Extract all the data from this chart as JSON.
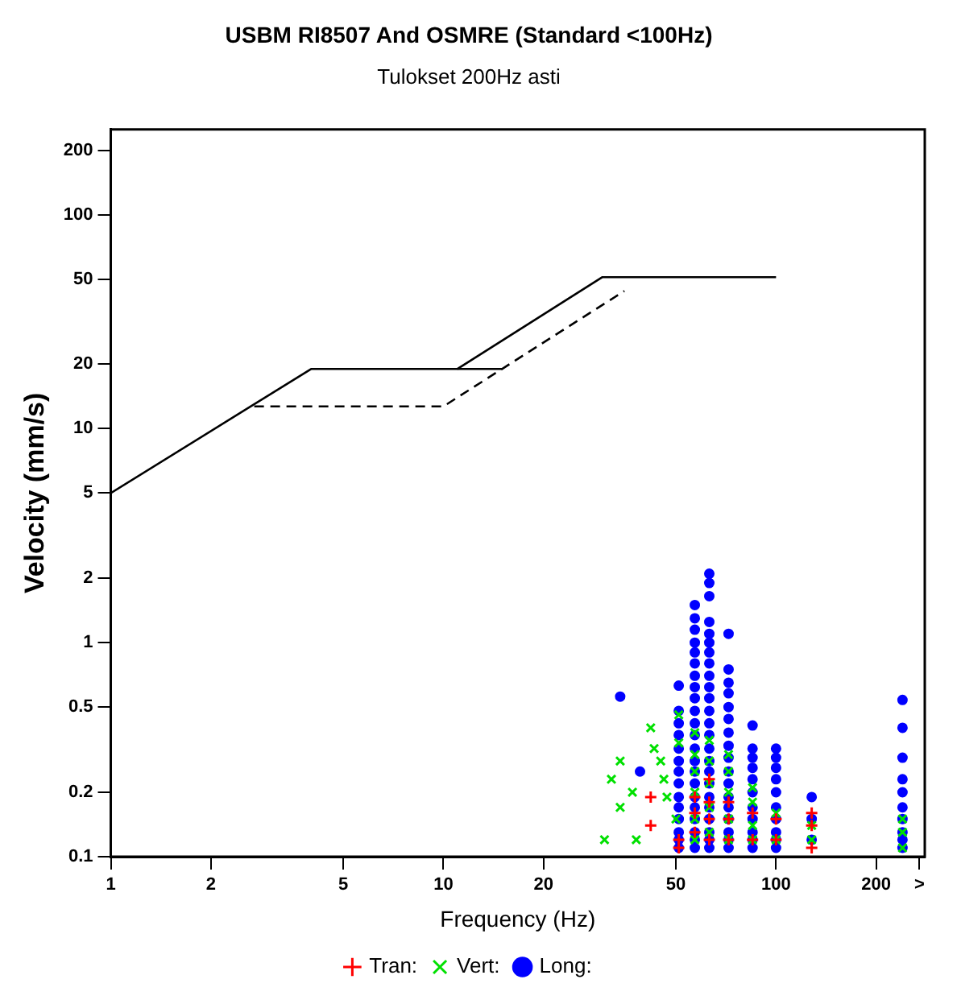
{
  "chart_data": {
    "type": "scatter",
    "title": "USBM RI8507 And OSMRE (Standard <100Hz)",
    "subtitle": "Tulokset 200Hz asti",
    "xlabel": "Frequency (Hz)",
    "ylabel": "Velocity (mm/s)",
    "log": "xy",
    "grid": false,
    "legend": "bottom",
    "xlim": [
      1,
      280
    ],
    "xticks": [
      1,
      2,
      5,
      10,
      20,
      50,
      100,
      200,
      {
        "value": 270,
        "label": ">"
      }
    ],
    "ylim": [
      0.1,
      250
    ],
    "yticks": [
      0.1,
      0.2,
      0.5,
      1,
      2,
      5,
      10,
      20,
      50,
      100,
      200
    ],
    "series": [
      {
        "type": "line",
        "color": "#000000",
        "line_style": "solid",
        "marker": "none",
        "x": [
          1,
          4,
          15
        ],
        "values": [
          5,
          19,
          19
        ]
      },
      {
        "type": "line",
        "color": "#000000",
        "line_style": "solid",
        "marker": "none",
        "x": [
          11,
          30,
          100
        ],
        "values": [
          19,
          51,
          51
        ]
      },
      {
        "type": "line",
        "color": "#000000",
        "line_style": "dashed",
        "marker": "none",
        "x": [
          2.7,
          10,
          15,
          35
        ],
        "values": [
          12.7,
          12.7,
          19,
          44
        ]
      },
      {
        "name": "Tran:",
        "color": "#ff0000",
        "marker": "cross",
        "x": [
          42,
          42,
          51,
          51,
          57,
          57,
          57,
          63,
          63,
          63,
          63,
          72,
          72,
          72,
          85,
          85,
          100,
          100,
          128,
          128,
          128
        ],
        "values": [
          0.19,
          0.14,
          0.12,
          0.11,
          0.19,
          0.16,
          0.13,
          0.23,
          0.18,
          0.15,
          0.12,
          0.18,
          0.15,
          0.12,
          0.16,
          0.12,
          0.15,
          0.12,
          0.16,
          0.14,
          0.11
        ]
      },
      {
        "name": "Vert:",
        "color": "#00e000",
        "marker": "x",
        "x": [
          30.5,
          32,
          34,
          34,
          37,
          38,
          42,
          43,
          45,
          46,
          47,
          50,
          51,
          51,
          57,
          57,
          57,
          57,
          57,
          57,
          63,
          63,
          63,
          63,
          63,
          72,
          72,
          72,
          72,
          72,
          85,
          85,
          85,
          85,
          100,
          100,
          128,
          128,
          240,
          240,
          240
        ],
        "values": [
          0.12,
          0.23,
          0.28,
          0.17,
          0.2,
          0.12,
          0.4,
          0.32,
          0.28,
          0.23,
          0.19,
          0.15,
          0.46,
          0.34,
          0.38,
          0.3,
          0.25,
          0.2,
          0.15,
          0.12,
          0.35,
          0.28,
          0.22,
          0.17,
          0.13,
          0.3,
          0.25,
          0.2,
          0.15,
          0.12,
          0.21,
          0.18,
          0.14,
          0.12,
          0.16,
          0.12,
          0.14,
          0.12,
          0.15,
          0.13,
          0.11
        ]
      },
      {
        "name": "Long:",
        "color": "#0000ff",
        "marker": "circle",
        "x": [
          34,
          39,
          51,
          51,
          51,
          51,
          51,
          51,
          51,
          51,
          51,
          51,
          51,
          51,
          51,
          51,
          57,
          57,
          57,
          57,
          57,
          57,
          57,
          57,
          57,
          57,
          57,
          57,
          57,
          57,
          57,
          57,
          57,
          57,
          57,
          57,
          57,
          57,
          63,
          63,
          63,
          63,
          63,
          63,
          63,
          63,
          63,
          63,
          63,
          63,
          63,
          63,
          63,
          63,
          63,
          63,
          63,
          63,
          63,
          63,
          63,
          63,
          72,
          72,
          72,
          72,
          72,
          72,
          72,
          72,
          72,
          72,
          72,
          72,
          72,
          72,
          72,
          72,
          72,
          85,
          85,
          85,
          85,
          85,
          85,
          85,
          85,
          85,
          85,
          85,
          100,
          100,
          100,
          100,
          100,
          100,
          100,
          100,
          100,
          100,
          128,
          128,
          128,
          240,
          240,
          240,
          240,
          240,
          240,
          240,
          240,
          240,
          240
        ],
        "values": [
          0.56,
          0.25,
          0.63,
          0.48,
          0.42,
          0.37,
          0.32,
          0.28,
          0.25,
          0.22,
          0.19,
          0.17,
          0.15,
          0.13,
          0.12,
          0.11,
          1.5,
          1.3,
          1.15,
          1,
          0.9,
          0.8,
          0.7,
          0.62,
          0.55,
          0.48,
          0.42,
          0.37,
          0.32,
          0.28,
          0.25,
          0.22,
          0.19,
          0.17,
          0.15,
          0.13,
          0.12,
          0.11,
          2.1,
          1.9,
          1.65,
          1.25,
          1.1,
          1,
          0.9,
          0.8,
          0.7,
          0.62,
          0.55,
          0.48,
          0.42,
          0.37,
          0.32,
          0.28,
          0.25,
          0.22,
          0.19,
          0.17,
          0.15,
          0.13,
          0.12,
          0.11,
          1.1,
          0.75,
          0.65,
          0.58,
          0.5,
          0.44,
          0.38,
          0.33,
          0.29,
          0.25,
          0.22,
          0.19,
          0.17,
          0.15,
          0.13,
          0.12,
          0.11,
          0.41,
          0.32,
          0.29,
          0.26,
          0.23,
          0.2,
          0.17,
          0.15,
          0.13,
          0.12,
          0.11,
          0.32,
          0.29,
          0.26,
          0.23,
          0.2,
          0.17,
          0.15,
          0.13,
          0.12,
          0.11,
          0.19,
          0.15,
          0.12,
          0.54,
          0.4,
          0.29,
          0.23,
          0.2,
          0.17,
          0.15,
          0.13,
          0.12,
          0.11
        ]
      }
    ]
  }
}
